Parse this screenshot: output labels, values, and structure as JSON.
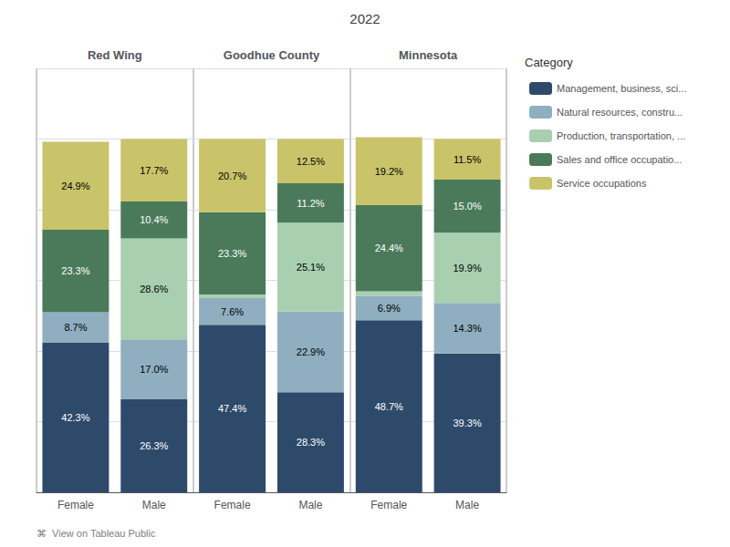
{
  "chart_data": {
    "type": "bar",
    "title": "2022",
    "categories": [
      "Female",
      "Male",
      "Female",
      "Male",
      "Female",
      "Male"
    ],
    "groups": [
      "Red Wing",
      "Goodhue County",
      "Minnesota"
    ],
    "series": [
      {
        "name": "Management, business, sci...",
        "color": "#2d4a6b",
        "values": [
          42.3,
          26.3,
          47.4,
          28.3,
          48.7,
          39.3
        ],
        "value_labels": [
          "42.3%",
          "26.3%",
          "47.4%",
          "28.3%",
          "48.7%",
          "39.3%"
        ]
      },
      {
        "name": "Natural resources, constru...",
        "color": "#8fafc0",
        "values": [
          8.7,
          17.0,
          7.6,
          22.9,
          6.9,
          14.3
        ],
        "value_labels": [
          "8.7%",
          "17.0%",
          "7.6%",
          "22.9%",
          "6.9%",
          "14.3%"
        ]
      },
      {
        "name": "Production, transportation, ...",
        "color": "#a8d0b0",
        "values": [
          0.0,
          28.6,
          1.0,
          25.1,
          1.3,
          19.9
        ],
        "value_labels": [
          null,
          "28.6%",
          null,
          "25.1%",
          null,
          "19.9%"
        ]
      },
      {
        "name": "Sales and office occupatio...",
        "color": "#4a7a5a",
        "values": [
          23.3,
          10.4,
          23.3,
          11.2,
          24.4,
          15.0
        ],
        "value_labels": [
          "23.3%",
          "10.4%",
          "23.3%",
          "11.2%",
          "24.4%",
          "15.0%"
        ]
      },
      {
        "name": "Service occupations",
        "color": "#c9c46a",
        "values": [
          24.9,
          17.7,
          20.7,
          12.5,
          19.2,
          11.5
        ],
        "value_labels": [
          "24.9%",
          "17.7%",
          "20.7%",
          "12.5%",
          "19.2%",
          "11.5%"
        ]
      }
    ],
    "ylim": [
      0,
      120
    ],
    "yticks": [
      0,
      20,
      40,
      60,
      80,
      100,
      120
    ],
    "grid": true,
    "stacked": true,
    "data_labels": true,
    "tick_labels": "x",
    "legend": "right",
    "legend_title": "Category",
    "footer": "⌘  View on Tableau Public"
  }
}
